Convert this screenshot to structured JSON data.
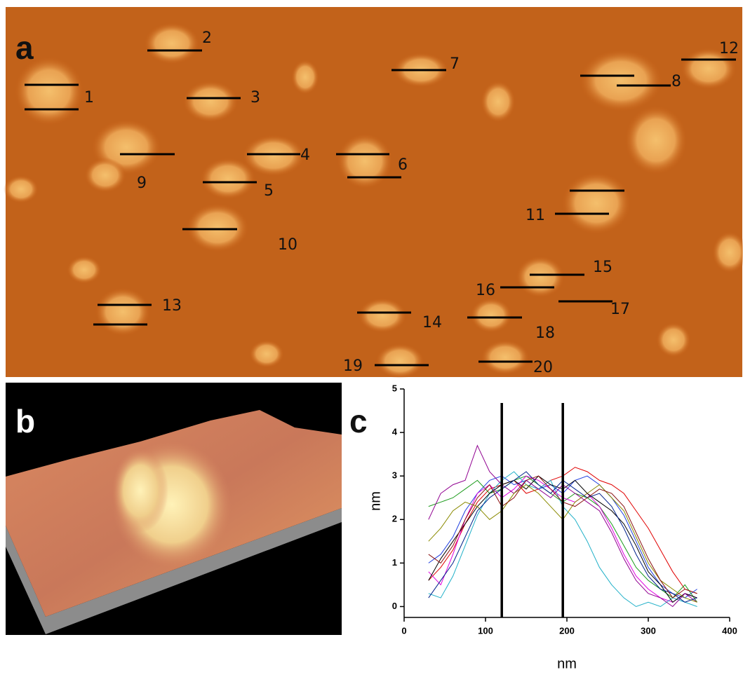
{
  "panel_labels": [
    "a",
    "b",
    "c"
  ],
  "image_a": {
    "line_labels": [
      "1",
      "2",
      "3",
      "4",
      "5",
      "6",
      "7",
      "8",
      "9",
      "10",
      "11",
      "12",
      "13",
      "14",
      "15",
      "16",
      "17",
      "18",
      "19",
      "20"
    ]
  },
  "chart_data": {
    "type": "line",
    "x_label": "nm",
    "y_label": "nm",
    "x": [
      30,
      45,
      60,
      75,
      90,
      105,
      120,
      135,
      150,
      165,
      180,
      195,
      210,
      225,
      240,
      255,
      270,
      285,
      300,
      315,
      330,
      345,
      360
    ],
    "series": [
      {
        "color": "#e00000",
        "values": [
          0.6,
          0.9,
          1.3,
          1.9,
          2.4,
          2.7,
          2.8,
          2.9,
          2.6,
          2.7,
          2.9,
          3.0,
          3.2,
          3.1,
          2.9,
          2.8,
          2.6,
          2.2,
          1.8,
          1.3,
          0.8,
          0.4,
          0.3
        ]
      },
      {
        "color": "#1f3fe0",
        "values": [
          1.0,
          1.2,
          1.6,
          2.2,
          2.6,
          2.9,
          3.0,
          2.8,
          2.9,
          2.7,
          2.8,
          2.6,
          2.9,
          3.0,
          2.8,
          2.5,
          2.1,
          1.5,
          0.9,
          0.5,
          0.3,
          0.2,
          0.4
        ]
      },
      {
        "color": "#1a9a1a",
        "values": [
          2.3,
          2.4,
          2.5,
          2.7,
          2.9,
          2.6,
          2.7,
          2.9,
          3.0,
          2.8,
          2.6,
          2.4,
          2.6,
          2.5,
          2.3,
          1.9,
          1.4,
          0.9,
          0.6,
          0.4,
          0.2,
          0.5,
          0.1
        ]
      },
      {
        "color": "#e000e0",
        "values": [
          0.8,
          0.5,
          1.2,
          2.0,
          2.6,
          2.8,
          2.5,
          2.7,
          3.0,
          2.9,
          2.7,
          2.5,
          2.4,
          2.6,
          2.3,
          1.8,
          1.2,
          0.7,
          0.4,
          0.2,
          0.1,
          0.3,
          0.2
        ]
      },
      {
        "color": "#20b0c8",
        "values": [
          0.3,
          0.2,
          0.7,
          1.4,
          2.1,
          2.6,
          2.9,
          3.1,
          2.8,
          2.7,
          2.9,
          2.3,
          2.0,
          1.5,
          0.9,
          0.5,
          0.2,
          0.0,
          0.1,
          0.0,
          0.2,
          0.1,
          0.0
        ]
      },
      {
        "color": "#000000",
        "values": [
          0.6,
          1.1,
          1.5,
          1.9,
          2.3,
          2.6,
          2.8,
          2.9,
          2.7,
          3.0,
          2.8,
          2.7,
          2.9,
          2.6,
          2.4,
          2.2,
          1.9,
          1.4,
          0.8,
          0.5,
          0.1,
          0.3,
          0.2
        ]
      },
      {
        "color": "#900090",
        "values": [
          2.0,
          2.6,
          2.8,
          2.9,
          3.7,
          3.1,
          2.8,
          2.6,
          2.9,
          2.7,
          2.5,
          2.8,
          2.6,
          2.4,
          2.2,
          1.7,
          1.1,
          0.6,
          0.3,
          0.2,
          0.0,
          0.3,
          0.1
        ]
      },
      {
        "color": "#8a8a00",
        "values": [
          1.5,
          1.8,
          2.2,
          2.4,
          2.3,
          2.0,
          2.2,
          2.6,
          2.8,
          2.6,
          2.3,
          2.0,
          2.4,
          2.6,
          2.8,
          2.5,
          2.2,
          1.6,
          1.0,
          0.6,
          0.4,
          0.2,
          0.1
        ]
      },
      {
        "color": "#00208a",
        "values": [
          0.2,
          0.6,
          1.0,
          1.6,
          2.2,
          2.5,
          2.7,
          2.9,
          3.1,
          2.8,
          2.6,
          2.9,
          2.7,
          2.5,
          2.6,
          2.3,
          1.8,
          1.2,
          0.7,
          0.4,
          0.3,
          0.1,
          0.2
        ]
      },
      {
        "color": "#8a1010",
        "values": [
          1.2,
          1.0,
          1.4,
          2.0,
          2.5,
          2.8,
          2.3,
          2.5,
          2.9,
          3.0,
          2.7,
          2.4,
          2.3,
          2.5,
          2.7,
          2.6,
          2.3,
          1.7,
          1.1,
          0.6,
          0.2,
          0.4,
          0.3
        ]
      }
    ],
    "xlim": [
      0,
      400
    ],
    "xticks": [
      0,
      100,
      200,
      300,
      400
    ],
    "ylim": [
      -0.25,
      5
    ],
    "yticks": [
      0,
      1,
      2,
      3,
      4,
      5
    ],
    "vlines": [
      120,
      195
    ]
  }
}
